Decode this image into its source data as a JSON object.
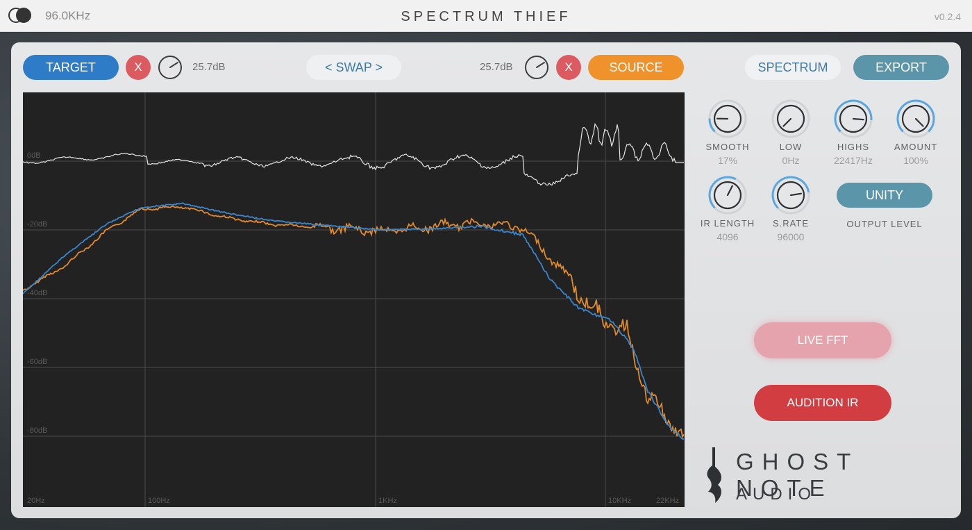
{
  "titlebar": {
    "sample_rate": "96.0KHz",
    "title": "SPECTRUM THIEF",
    "version": "v0.2.4"
  },
  "target": {
    "label": "TARGET",
    "remove": "X",
    "gain": "25.7dB"
  },
  "swap": {
    "label": "< SWAP >"
  },
  "source": {
    "label": "SOURCE",
    "remove": "X",
    "gain": "25.7dB"
  },
  "header_buttons": {
    "spectrum": "SPECTRUM",
    "export": "EXPORT"
  },
  "plot": {
    "db_labels": [
      "0dB",
      "-20dB",
      "-40dB",
      "-60dB",
      "-80dB"
    ],
    "freq_labels": [
      "20Hz",
      "100Hz",
      "1KHz",
      "10KHz",
      "22KHz"
    ],
    "colors": {
      "target": "#3a86cc",
      "source": "#e08a2c",
      "difference": "#e6e6e6",
      "grid": "#4a4a4a"
    }
  },
  "knobs": [
    {
      "label": "SMOOTH",
      "value": "17%",
      "level": 0.17
    },
    {
      "label": "LOW",
      "value": "0Hz",
      "level": 0.0
    },
    {
      "label": "HIGHS",
      "value": "22417Hz",
      "level": 0.85
    },
    {
      "label": "AMOUNT",
      "value": "100%",
      "level": 1.0
    },
    {
      "label": "IR LENGTH",
      "value": "4096",
      "level": 0.6
    },
    {
      "label": "S.RATE",
      "value": "96000",
      "level": 0.8
    }
  ],
  "output": {
    "unity_label": "UNITY",
    "label": "OUTPUT LEVEL"
  },
  "actions": {
    "live_fft": "LIVE FFT",
    "audition_ir": "AUDITION IR"
  },
  "brand": {
    "line1": "GHOST NOTE",
    "line2": "AUDIO"
  }
}
